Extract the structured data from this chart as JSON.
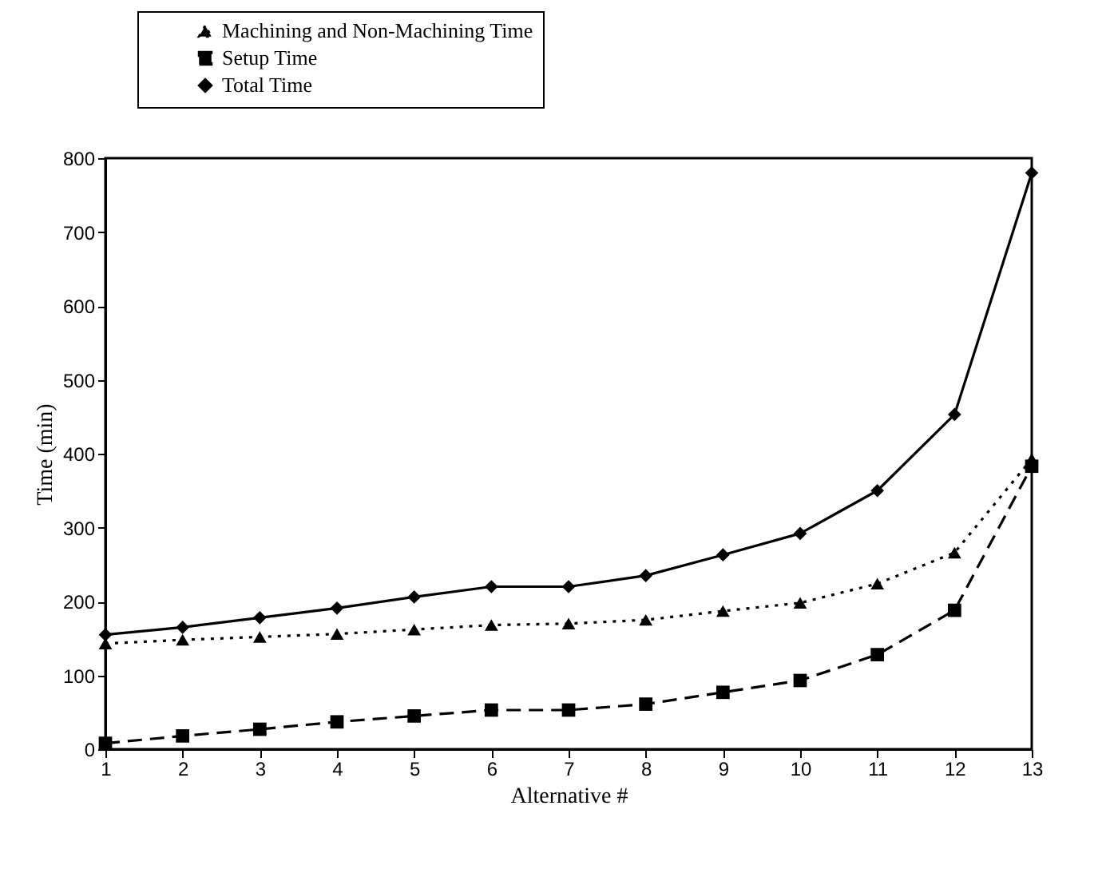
{
  "chart_data": {
    "type": "line",
    "xlabel": "Alternative #",
    "ylabel": "Time (min)",
    "x": [
      1,
      2,
      3,
      4,
      5,
      6,
      7,
      8,
      9,
      10,
      11,
      12,
      13
    ],
    "xlim": [
      1,
      13
    ],
    "xticks": [
      1,
      2,
      3,
      4,
      5,
      6,
      7,
      8,
      9,
      10,
      11,
      12,
      13
    ],
    "ylim": [
      0,
      800
    ],
    "yticks": [
      0,
      100,
      200,
      300,
      400,
      500,
      600,
      700,
      800
    ],
    "grid": false,
    "legend": "top left",
    "series": [
      {
        "name": "Machining and Non-Machining Time",
        "color": "#000000",
        "marker": "triangle",
        "line_style": "dotted",
        "values": [
          143,
          148,
          152,
          156,
          162,
          168,
          170,
          175,
          187,
          198,
          224,
          266,
          393
        ]
      },
      {
        "name": "Setup Time",
        "color": "#000000",
        "marker": "square",
        "line_style": "dashed",
        "values": [
          8,
          18,
          27,
          37,
          45,
          53,
          53,
          61,
          77,
          93,
          128,
          188,
          383
        ]
      },
      {
        "name": "Total Time",
        "color": "#000000",
        "marker": "diamond",
        "line_style": "solid",
        "values": [
          155,
          165,
          178,
          191,
          206,
          220,
          220,
          235,
          263,
          292,
          350,
          453,
          780
        ]
      }
    ]
  }
}
